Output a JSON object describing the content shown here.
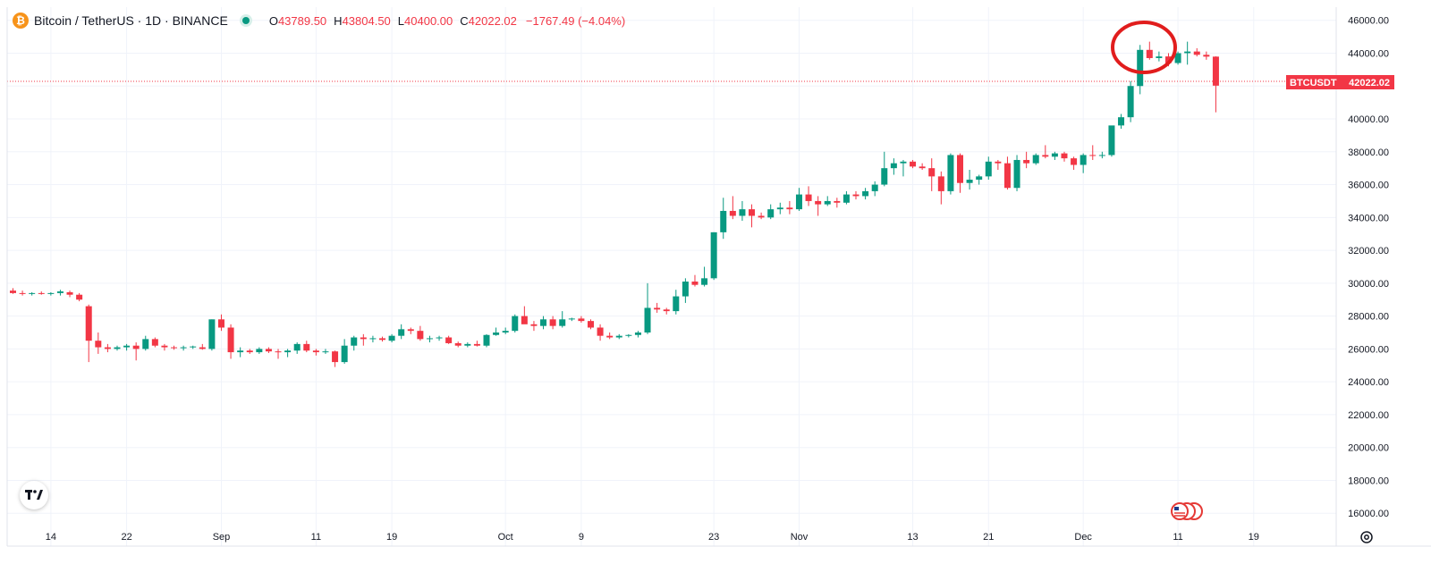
{
  "header": {
    "coin_icon": "bitcoin-icon",
    "symbol_title": "Bitcoin / TetherUS · 1D · BINANCE",
    "status": "market-open-dot",
    "o_label": "O",
    "o_value": "43789.50",
    "h_label": "H",
    "h_value": "43804.50",
    "l_label": "L",
    "l_value": "40400.00",
    "c_label": "C",
    "c_value": "42022.02",
    "change": "−1767.49 (−4.04%)"
  },
  "price_tag": {
    "symbol": "BTCUSDT",
    "price": "42022.02",
    "value": 42022.02
  },
  "colors": {
    "up": "#089981",
    "down": "#f23645",
    "grid": "#f0f3fa",
    "axis_text": "#131722",
    "annotation": "#e11d1d"
  },
  "icons": {
    "logo": "tradingview-logo-icon",
    "settings": "gear-icon",
    "events": "us-flag-icon"
  },
  "chart_data": {
    "type": "candlestick",
    "title": "Bitcoin / TetherUS · 1D · BINANCE",
    "ylim": [
      14000,
      46800
    ],
    "y_ticks": [
      "46000.00",
      "44000.00",
      "42000.00",
      "40000.00",
      "38000.00",
      "36000.00",
      "34000.00",
      "32000.00",
      "30000.00",
      "28000.00",
      "26000.00",
      "24000.00",
      "22000.00",
      "20000.00",
      "18000.00",
      "16000.00"
    ],
    "x_ticks": [
      {
        "label": "14",
        "index": 4
      },
      {
        "label": "22",
        "index": 12
      },
      {
        "label": "Sep",
        "index": 22
      },
      {
        "label": "11",
        "index": 32
      },
      {
        "label": "19",
        "index": 40
      },
      {
        "label": "Oct",
        "index": 52
      },
      {
        "label": "9",
        "index": 60
      },
      {
        "label": "23",
        "index": 74
      },
      {
        "label": "Nov",
        "index": 83
      },
      {
        "label": "13",
        "index": 95
      },
      {
        "label": "21",
        "index": 103
      },
      {
        "label": "Dec",
        "index": 113
      },
      {
        "label": "11",
        "index": 123
      },
      {
        "label": "19",
        "index": 131
      }
    ],
    "grid": true,
    "annotation": {
      "shape": "circle",
      "from_index": 117,
      "to_index": 122,
      "price_center": 44200
    },
    "candles": [
      [
        29550,
        29700,
        29350,
        29400
      ],
      [
        29400,
        29550,
        29250,
        29350
      ],
      [
        29350,
        29450,
        29250,
        29400
      ],
      [
        29400,
        29500,
        29300,
        29350
      ],
      [
        29350,
        29450,
        29250,
        29400
      ],
      [
        29400,
        29600,
        29250,
        29500
      ],
      [
        29450,
        29550,
        29150,
        29300
      ],
      [
        29300,
        29400,
        28900,
        29000
      ],
      [
        28600,
        28700,
        25200,
        26500
      ],
      [
        26500,
        27000,
        25700,
        26100
      ],
      [
        26100,
        26300,
        25800,
        26000
      ],
      [
        26000,
        26200,
        25900,
        26100
      ],
      [
        26100,
        26300,
        25900,
        26200
      ],
      [
        26200,
        26400,
        25300,
        26000
      ],
      [
        26000,
        26800,
        25900,
        26600
      ],
      [
        26600,
        26700,
        26100,
        26200
      ],
      [
        26200,
        26300,
        25900,
        26100
      ],
      [
        26100,
        26200,
        25950,
        26050
      ],
      [
        26050,
        26200,
        25900,
        26100
      ],
      [
        26100,
        26200,
        26000,
        26150
      ],
      [
        26100,
        26300,
        25950,
        26000
      ],
      [
        26000,
        27800,
        25900,
        27800
      ],
      [
        27800,
        28100,
        27100,
        27300
      ],
      [
        27300,
        27500,
        25400,
        25800
      ],
      [
        25800,
        26100,
        25500,
        25900
      ],
      [
        25900,
        26000,
        25700,
        25800
      ],
      [
        25800,
        26100,
        25700,
        26000
      ],
      [
        26000,
        26100,
        25750,
        25850
      ],
      [
        25850,
        26000,
        25400,
        25800
      ],
      [
        25800,
        26000,
        25500,
        25900
      ],
      [
        25900,
        26400,
        25700,
        26300
      ],
      [
        26300,
        26500,
        25800,
        25900
      ],
      [
        25900,
        26000,
        25600,
        25800
      ],
      [
        25800,
        26000,
        25700,
        25850
      ],
      [
        25850,
        25900,
        24900,
        25200
      ],
      [
        25200,
        26600,
        25100,
        26200
      ],
      [
        26200,
        26800,
        25900,
        26700
      ],
      [
        26700,
        26900,
        26200,
        26600
      ],
      [
        26600,
        26800,
        26400,
        26650
      ],
      [
        26650,
        26750,
        26450,
        26550
      ],
      [
        26500,
        26900,
        26400,
        26800
      ],
      [
        26800,
        27500,
        26600,
        27200
      ],
      [
        27200,
        27300,
        26900,
        27100
      ],
      [
        27100,
        27400,
        26500,
        26600
      ],
      [
        26600,
        26800,
        26400,
        26650
      ],
      [
        26650,
        26800,
        26500,
        26700
      ],
      [
        26700,
        26800,
        26300,
        26350
      ],
      [
        26350,
        26450,
        26100,
        26200
      ],
      [
        26200,
        26400,
        26100,
        26300
      ],
      [
        26300,
        26500,
        26150,
        26200
      ],
      [
        26200,
        26900,
        26100,
        26850
      ],
      [
        26850,
        27300,
        26800,
        27000
      ],
      [
        27000,
        27300,
        26900,
        27100
      ],
      [
        27100,
        28100,
        27000,
        28000
      ],
      [
        28000,
        28600,
        27800,
        27500
      ],
      [
        27500,
        27700,
        27100,
        27400
      ],
      [
        27400,
        28000,
        27200,
        27800
      ],
      [
        27800,
        28000,
        27200,
        27400
      ],
      [
        27400,
        28300,
        27300,
        27800
      ],
      [
        27800,
        27900,
        27700,
        27850
      ],
      [
        27850,
        28000,
        27600,
        27700
      ],
      [
        27700,
        27800,
        27200,
        27300
      ],
      [
        27300,
        27500,
        26500,
        26800
      ],
      [
        26800,
        27000,
        26600,
        26700
      ],
      [
        26700,
        26900,
        26600,
        26800
      ],
      [
        26800,
        26900,
        26700,
        26850
      ],
      [
        26850,
        27100,
        26700,
        27000
      ],
      [
        27000,
        30000,
        26900,
        28500
      ],
      [
        28500,
        28800,
        28200,
        28400
      ],
      [
        28400,
        28500,
        28100,
        28300
      ],
      [
        28300,
        29600,
        28100,
        29200
      ],
      [
        29200,
        30300,
        28800,
        30100
      ],
      [
        30100,
        30500,
        29800,
        29900
      ],
      [
        29900,
        31000,
        29800,
        30300
      ],
      [
        30300,
        33100,
        30200,
        33100
      ],
      [
        33100,
        35200,
        32700,
        34400
      ],
      [
        34400,
        35300,
        33900,
        34100
      ],
      [
        34100,
        35000,
        33800,
        34500
      ],
      [
        34500,
        34800,
        33400,
        34100
      ],
      [
        34100,
        34300,
        33900,
        34000
      ],
      [
        34000,
        34800,
        33900,
        34500
      ],
      [
        34500,
        34900,
        34200,
        34600
      ],
      [
        34600,
        35000,
        34200,
        34500
      ],
      [
        34500,
        35800,
        34400,
        35400
      ],
      [
        35400,
        35900,
        34700,
        35000
      ],
      [
        35000,
        35300,
        34100,
        34800
      ],
      [
        34800,
        35300,
        34700,
        35000
      ],
      [
        35000,
        35200,
        34600,
        34900
      ],
      [
        34900,
        35600,
        34800,
        35400
      ],
      [
        35400,
        35600,
        35100,
        35300
      ],
      [
        35300,
        35800,
        35100,
        35600
      ],
      [
        35600,
        36200,
        35300,
        36000
      ],
      [
        36000,
        38000,
        35900,
        37000
      ],
      [
        37000,
        37600,
        36600,
        37300
      ],
      [
        37300,
        37500,
        36500,
        37400
      ],
      [
        37400,
        37500,
        37000,
        37100
      ],
      [
        37100,
        37300,
        36900,
        37000
      ],
      [
        37000,
        37600,
        35600,
        36500
      ],
      [
        36500,
        36800,
        34800,
        35600
      ],
      [
        35600,
        37900,
        35400,
        37800
      ],
      [
        37800,
        37900,
        35500,
        36100
      ],
      [
        36100,
        36900,
        35700,
        36300
      ],
      [
        36300,
        36600,
        36000,
        36500
      ],
      [
        36500,
        37700,
        36300,
        37400
      ],
      [
        37400,
        37500,
        36900,
        37300
      ],
      [
        37300,
        37700,
        35700,
        35800
      ],
      [
        35800,
        37800,
        35600,
        37500
      ],
      [
        37500,
        38000,
        37000,
        37300
      ],
      [
        37300,
        37900,
        37200,
        37800
      ],
      [
        37800,
        38400,
        37600,
        37700
      ],
      [
        37700,
        38000,
        37500,
        37900
      ],
      [
        37900,
        38000,
        37400,
        37600
      ],
      [
        37600,
        37700,
        36900,
        37200
      ],
      [
        37200,
        37900,
        36700,
        37800
      ],
      [
        37800,
        38400,
        37500,
        37750
      ],
      [
        37750,
        38000,
        37600,
        37800
      ],
      [
        37800,
        39500,
        37700,
        39600
      ],
      [
        39600,
        40300,
        39400,
        40100
      ],
      [
        40100,
        42300,
        39800,
        42000
      ],
      [
        42000,
        44500,
        41500,
        44200
      ],
      [
        44200,
        44700,
        43600,
        43700
      ],
      [
        43700,
        44100,
        43500,
        43800
      ],
      [
        43800,
        44000,
        43200,
        43400
      ],
      [
        43400,
        44100,
        43300,
        44000
      ],
      [
        44000,
        44700,
        43300,
        44100
      ],
      [
        44100,
        44300,
        43800,
        43900
      ],
      [
        43900,
        44100,
        43600,
        43789.5
      ],
      [
        43789.5,
        43804.5,
        40400,
        42022.02
      ]
    ]
  }
}
